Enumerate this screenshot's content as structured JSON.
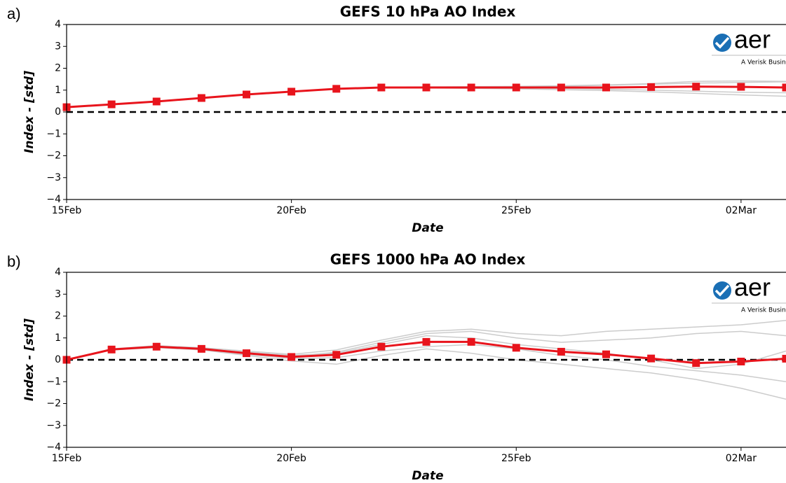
{
  "chart_data": [
    {
      "type": "line",
      "panel_label": "a)",
      "title": "GEFS 10 hPa AO Index",
      "xlabel": "Date",
      "ylabel": "Index - [std]",
      "logo_text": "aer",
      "logo_tagline": "A Verisk Business",
      "x": [
        "15Feb",
        "16Feb",
        "17Feb",
        "18Feb",
        "19Feb",
        "20Feb",
        "21Feb",
        "22Feb",
        "23Feb",
        "24Feb",
        "25Feb",
        "26Feb",
        "27Feb",
        "28Feb",
        "01Mar",
        "02Mar",
        "03Mar"
      ],
      "xlim": [
        "15Feb",
        "03Mar"
      ],
      "xticks": [
        "15Feb",
        "20Feb",
        "25Feb",
        "02Mar"
      ],
      "ylim": [
        -4,
        4
      ],
      "yticks": [
        {
          "value": -4,
          "label": "−4"
        },
        {
          "value": -3,
          "label": "−3"
        },
        {
          "value": -2,
          "label": "−2"
        },
        {
          "value": -1,
          "label": "−1"
        },
        0,
        1,
        2,
        3,
        4
      ],
      "zero_line": 0,
      "series": [
        {
          "color": "#cccccc",
          "values": [
            0.22,
            0.35,
            0.48,
            0.64,
            0.8,
            0.93,
            1.06,
            1.12,
            1.13,
            1.14,
            1.16,
            1.18,
            1.22,
            1.27,
            1.32,
            1.35,
            1.38
          ]
        },
        {
          "color": "#cccccc",
          "values": [
            0.22,
            0.35,
            0.48,
            0.64,
            0.8,
            0.93,
            1.05,
            1.1,
            1.1,
            1.08,
            1.06,
            1.02,
            0.98,
            0.92,
            0.85,
            0.78,
            0.72
          ]
        },
        {
          "color": "#cccccc",
          "values": [
            0.22,
            0.35,
            0.48,
            0.64,
            0.8,
            0.94,
            1.07,
            1.14,
            1.15,
            1.16,
            1.17,
            1.2,
            1.24,
            1.3,
            1.4,
            1.42,
            1.4
          ]
        },
        {
          "color": "#cccccc",
          "values": [
            0.22,
            0.35,
            0.48,
            0.64,
            0.8,
            0.93,
            1.06,
            1.12,
            1.1,
            1.1,
            1.1,
            1.08,
            1.04,
            1.0,
            0.95,
            0.9,
            0.88
          ]
        },
        {
          "color": "#e8141c",
          "markers": "square",
          "values": [
            0.22,
            0.35,
            0.48,
            0.64,
            0.8,
            0.93,
            1.06,
            1.12,
            1.12,
            1.12,
            1.12,
            1.12,
            1.12,
            1.14,
            1.16,
            1.15,
            1.12
          ]
        }
      ]
    },
    {
      "type": "line",
      "panel_label": "b)",
      "title": "GEFS 1000 hPa AO Index",
      "xlabel": "Date",
      "ylabel": "Index - [std]",
      "logo_text": "aer",
      "logo_tagline": "A Verisk Business",
      "x": [
        "15Feb",
        "16Feb",
        "17Feb",
        "18Feb",
        "19Feb",
        "20Feb",
        "21Feb",
        "22Feb",
        "23Feb",
        "24Feb",
        "25Feb",
        "26Feb",
        "27Feb",
        "28Feb",
        "01Mar",
        "02Mar",
        "03Mar"
      ],
      "xlim": [
        "15Feb",
        "03Mar"
      ],
      "xticks": [
        "15Feb",
        "20Feb",
        "25Feb",
        "02Mar"
      ],
      "ylim": [
        -4,
        4
      ],
      "yticks": [
        {
          "value": -4,
          "label": "−4"
        },
        {
          "value": -3,
          "label": "−3"
        },
        {
          "value": -2,
          "label": "−2"
        },
        {
          "value": -1,
          "label": "−1"
        },
        0,
        1,
        2,
        3,
        4
      ],
      "zero_line": 0,
      "series": [
        {
          "color": "#cccccc",
          "values": [
            0,
            0.5,
            0.65,
            0.55,
            0.4,
            0.25,
            0.45,
            0.9,
            1.3,
            1.4,
            1.2,
            1.1,
            1.3,
            1.4,
            1.5,
            1.6,
            1.8
          ]
        },
        {
          "color": "#cccccc",
          "values": [
            0,
            0.45,
            0.55,
            0.45,
            0.2,
            -0.05,
            -0.2,
            0.2,
            0.5,
            0.3,
            0.0,
            -0.2,
            -0.4,
            -0.6,
            -0.9,
            -1.3,
            -1.8
          ]
        },
        {
          "color": "#cccccc",
          "values": [
            0,
            0.48,
            0.62,
            0.5,
            0.35,
            0.2,
            0.3,
            0.7,
            1.1,
            1.0,
            0.7,
            0.5,
            0.3,
            0.0,
            -0.4,
            -0.2,
            0.4
          ]
        },
        {
          "color": "#cccccc",
          "values": [
            0,
            0.46,
            0.58,
            0.48,
            0.25,
            0.05,
            0.1,
            0.4,
            0.6,
            0.7,
            0.5,
            0.2,
            0.0,
            -0.3,
            -0.5,
            -0.7,
            -1.0
          ]
        },
        {
          "color": "#cccccc",
          "values": [
            0,
            0.47,
            0.6,
            0.52,
            0.3,
            0.15,
            0.35,
            0.8,
            1.2,
            1.3,
            1.0,
            0.8,
            0.9,
            1.0,
            1.2,
            1.3,
            1.1
          ]
        },
        {
          "color": "#e8141c",
          "markers": "square",
          "values": [
            0.0,
            0.47,
            0.6,
            0.5,
            0.3,
            0.13,
            0.23,
            0.6,
            0.82,
            0.82,
            0.55,
            0.37,
            0.25,
            0.06,
            -0.15,
            -0.08,
            0.05
          ]
        }
      ]
    }
  ]
}
